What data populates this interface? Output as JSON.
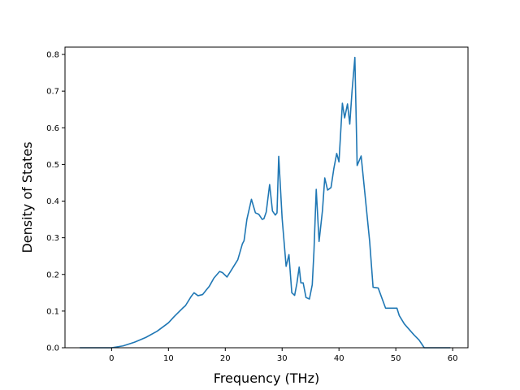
{
  "chart_data": {
    "type": "line",
    "title": "",
    "xlabel": "Frequency (THz)",
    "ylabel": "Density of States",
    "xlim": [
      -8.2,
      62.7
    ],
    "ylim": [
      0,
      0.82
    ],
    "x_ticks": [
      0,
      10,
      20,
      30,
      40,
      50,
      60
    ],
    "y_ticks": [
      0.0,
      0.1,
      0.2,
      0.3,
      0.4,
      0.5,
      0.6,
      0.7,
      0.8
    ],
    "x_tick_labels": [
      "0",
      "10",
      "20",
      "30",
      "40",
      "50",
      "60"
    ],
    "y_tick_labels": [
      "0.0",
      "0.1",
      "0.2",
      "0.3",
      "0.4",
      "0.5",
      "0.6",
      "0.7",
      "0.8"
    ],
    "grid": false,
    "legend": "none",
    "series": [
      {
        "color": "#1f77b4",
        "x": [
          -5.6,
          0.0,
          2.0,
          4.0,
          6.0,
          8.0,
          10.0,
          11.0,
          12.5,
          13.0,
          14.0,
          14.5,
          15.2,
          16.0,
          17.2,
          18.0,
          19.0,
          19.5,
          20.3,
          21.0,
          22.2,
          23.0,
          23.3,
          23.8,
          24.6,
          25.3,
          25.9,
          26.5,
          26.8,
          27.2,
          27.8,
          28.3,
          28.8,
          29.1,
          29.4,
          30.0,
          30.7,
          31.2,
          31.7,
          32.2,
          32.6,
          33.0,
          33.3,
          33.7,
          34.2,
          34.8,
          35.3,
          35.6,
          36.0,
          36.5,
          37.1,
          37.5,
          38.0,
          38.6,
          39.1,
          39.6,
          40.0,
          40.6,
          41.0,
          41.5,
          41.9,
          42.3,
          42.8,
          43.2,
          43.9,
          44.5,
          45.4,
          46.0,
          46.9,
          48.2,
          50.2,
          50.6,
          51.5,
          53.2,
          54.1,
          55.0,
          59.6
        ],
        "values": [
          0.0,
          0.0,
          0.005,
          0.015,
          0.028,
          0.045,
          0.068,
          0.085,
          0.108,
          0.115,
          0.14,
          0.15,
          0.142,
          0.145,
          0.168,
          0.19,
          0.208,
          0.205,
          0.193,
          0.21,
          0.24,
          0.283,
          0.292,
          0.35,
          0.405,
          0.368,
          0.364,
          0.35,
          0.352,
          0.37,
          0.445,
          0.373,
          0.362,
          0.368,
          0.522,
          0.353,
          0.222,
          0.254,
          0.15,
          0.143,
          0.176,
          0.22,
          0.177,
          0.177,
          0.137,
          0.133,
          0.172,
          0.263,
          0.432,
          0.29,
          0.375,
          0.463,
          0.43,
          0.437,
          0.489,
          0.53,
          0.507,
          0.667,
          0.627,
          0.665,
          0.61,
          0.7,
          0.792,
          0.497,
          0.523,
          0.43,
          0.29,
          0.165,
          0.163,
          0.108,
          0.108,
          0.088,
          0.065,
          0.035,
          0.021,
          0.0,
          0.0
        ]
      }
    ]
  }
}
